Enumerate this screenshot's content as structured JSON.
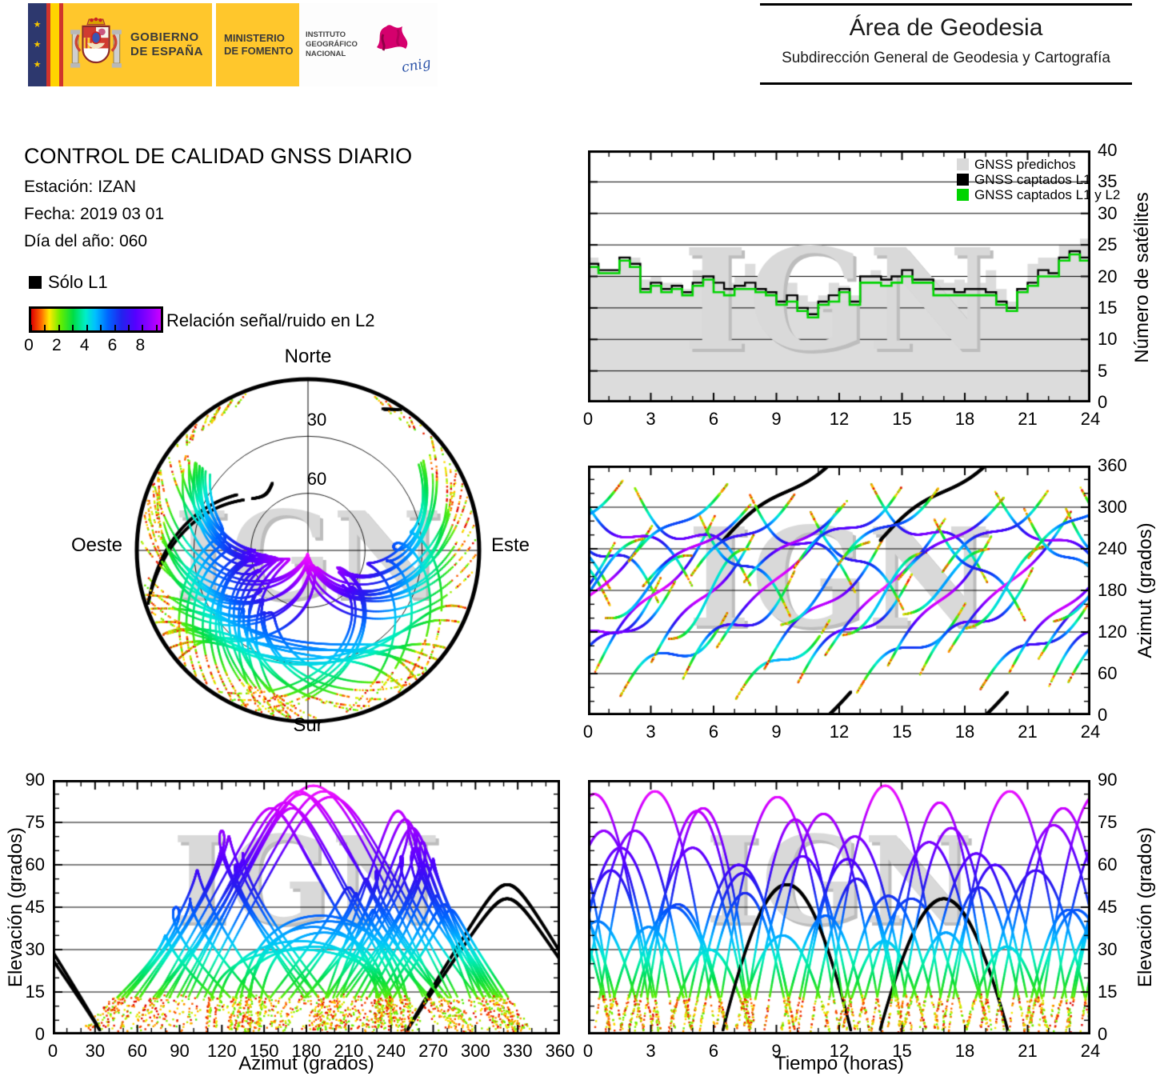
{
  "banner": {
    "gobierno": [
      "GOBIERNO",
      "DE ESPAÑA"
    ],
    "ministerio": [
      "MINISTERIO",
      "DE FOMENTO"
    ],
    "instituto": [
      "INSTITUTO",
      "GEOGRÁFICO",
      "NACIONAL"
    ],
    "cnig": "cnig"
  },
  "header": {
    "title": "Área de Geodesia",
    "subtitle": "Subdirección General de Geodesia y Cartografía"
  },
  "report": {
    "title": "CONTROL DE CALIDAD GNSS DIARIO",
    "station": "Estación: IZAN",
    "date": "Fecha: 2019 03 01",
    "doy": "Día del año: 060"
  },
  "l1_legend": {
    "label": "Sólo L1",
    "color": "#000000"
  },
  "snr_scale": {
    "label": "Relación señal/ruido en L2",
    "min": 0,
    "max": 9.3,
    "tick_labels": [
      0,
      2,
      4,
      6,
      8
    ],
    "minor_ticks": [
      0,
      1,
      2,
      3,
      4,
      5,
      6,
      7,
      8,
      9
    ],
    "stops": [
      [
        0,
        "#dd0000"
      ],
      [
        0.7,
        "#ff6600"
      ],
      [
        1.3,
        "#ffe900"
      ],
      [
        2.1,
        "#66ee00"
      ],
      [
        3.0,
        "#00dd44"
      ],
      [
        3.9,
        "#00eec8"
      ],
      [
        4.6,
        "#00bfff"
      ],
      [
        5.5,
        "#0066ff"
      ],
      [
        6.5,
        "#2222ee"
      ],
      [
        7.5,
        "#5500ff"
      ],
      [
        8.6,
        "#9900ff"
      ],
      [
        9.3,
        "#cc00ff"
      ],
      [
        10.2,
        "#ff22ff"
      ]
    ]
  },
  "watermark": "IGN",
  "chart_data": [
    {
      "id": "sat_count",
      "type": "area",
      "legend": [
        {
          "label": "GNSS predichos",
          "color": "#d9d9d9"
        },
        {
          "label": "GNSS captados L1",
          "color": "#000000"
        },
        {
          "label": "GNSS captados L1 y L2",
          "color": "#00d400"
        }
      ],
      "ylabel": "Número de satélites",
      "xlim": [
        0,
        24
      ],
      "ylim": [
        0,
        40
      ],
      "xticks": [
        0,
        3,
        6,
        9,
        12,
        15,
        18,
        21,
        24
      ],
      "yticks": [
        0,
        5,
        10,
        15,
        20,
        25,
        30,
        35,
        40
      ],
      "grid": "horizontal",
      "x_step_hours": 0.5,
      "series": [
        {
          "name": "GNSS predichos",
          "color": "#dcdcdc",
          "fill": true,
          "values": [
            23,
            21,
            21,
            23,
            23,
            19.5,
            20,
            19,
            19,
            18,
            21,
            21,
            20,
            19,
            20,
            22,
            20,
            20,
            21,
            19,
            17,
            16,
            17,
            19,
            18.5,
            17,
            20,
            21,
            20,
            20.5,
            22.5,
            21,
            20,
            19.5,
            19,
            19.5,
            19,
            19,
            21,
            18,
            16,
            18,
            22,
            23,
            23,
            25,
            25,
            26,
            23.5
          ]
        },
        {
          "name": "GNSS captados L1",
          "color": "#000000",
          "fill": false,
          "values": [
            22,
            21,
            21,
            23,
            22,
            18,
            19,
            18,
            18.5,
            17.5,
            19,
            20,
            19,
            18,
            18.5,
            19,
            18,
            17.5,
            16,
            17,
            15,
            14,
            16,
            17,
            18,
            16,
            20,
            20,
            19.5,
            20,
            21,
            19.5,
            19.5,
            18,
            18,
            17.5,
            18,
            18,
            17.5,
            16,
            15,
            18,
            19,
            21,
            20.5,
            23,
            24,
            23,
            22
          ]
        },
        {
          "name": "GNSS captados L1 y L2",
          "color": "#00d400",
          "fill": false,
          "values": [
            21.5,
            20.5,
            20.5,
            22.5,
            21.5,
            17.5,
            18.5,
            17.5,
            18,
            17,
            18.5,
            19.5,
            17.5,
            17,
            18,
            18,
            17.5,
            17,
            15.5,
            16,
            14.5,
            13.5,
            15.5,
            16,
            17.5,
            15.5,
            19,
            19,
            18.5,
            19,
            20,
            19,
            19,
            17,
            17,
            17,
            17,
            17,
            17,
            15.5,
            14.5,
            17.5,
            18.5,
            20,
            20,
            22.5,
            23.5,
            22.5,
            22
          ]
        }
      ]
    },
    {
      "id": "skyplot",
      "type": "scatter",
      "subtype": "polar_sky",
      "compass": {
        "north": "Norte",
        "south": "Sur",
        "east": "Este",
        "west": "Oeste"
      },
      "ring_labels": [
        "30",
        "60"
      ],
      "rings": [
        30,
        60
      ],
      "elevation_range": [
        0,
        90
      ],
      "source": "satellite_passes"
    },
    {
      "id": "az_time",
      "type": "scatter",
      "ylabel": "Azimut (grados)",
      "xlim": [
        0,
        24
      ],
      "ylim": [
        0,
        360
      ],
      "xticks": [
        0,
        3,
        6,
        9,
        12,
        15,
        18,
        21,
        24
      ],
      "yticks": [
        0,
        60,
        120,
        180,
        240,
        300,
        360
      ],
      "grid": "horizontal",
      "source": "satellite_passes"
    },
    {
      "id": "el_az",
      "type": "scatter",
      "xlabel": "Azimut (grados)",
      "ylabel": "Elevación (grados)",
      "xlim": [
        0,
        360
      ],
      "ylim": [
        0,
        90
      ],
      "xticks": [
        0,
        30,
        60,
        90,
        120,
        150,
        180,
        210,
        240,
        270,
        300,
        330,
        360
      ],
      "yticks": [
        0,
        15,
        30,
        45,
        60,
        75,
        90
      ],
      "grid": "horizontal",
      "source": "satellite_passes"
    },
    {
      "id": "el_time",
      "type": "scatter",
      "xlabel": "Tiempo (horas)",
      "ylabel": "Elevación (grados)",
      "xlim": [
        0,
        24
      ],
      "ylim": [
        0,
        90
      ],
      "xticks": [
        0,
        3,
        6,
        9,
        12,
        15,
        18,
        21,
        24
      ],
      "yticks": [
        0,
        15,
        30,
        45,
        60,
        75,
        90
      ],
      "grid": "horizontal",
      "source": "satellite_passes"
    }
  ],
  "satellite_passes": {
    "format": [
      "t0_h",
      "dur_h",
      "az_rise_deg",
      "az_set_deg",
      "el_max_deg",
      "az_bulge_deg",
      "l1_only"
    ],
    "passes": [
      [
        -2.0,
        5.5,
        40,
        200,
        72,
        30,
        0
      ],
      [
        -1.2,
        4.6,
        300,
        160,
        58,
        -25,
        0
      ],
      [
        0.3,
        5.8,
        60,
        290,
        86,
        20,
        0
      ],
      [
        0.8,
        4.2,
        140,
        230,
        38,
        -15,
        0
      ],
      [
        1.5,
        5.2,
        25,
        150,
        45,
        25,
        0
      ],
      [
        2.2,
        5.6,
        330,
        185,
        66,
        -30,
        0
      ],
      [
        3.0,
        5.0,
        75,
        265,
        80,
        15,
        0
      ],
      [
        3.8,
        4.0,
        110,
        240,
        30,
        -20,
        0
      ],
      [
        4.5,
        5.4,
        50,
        210,
        60,
        28,
        0
      ],
      [
        5.3,
        4.4,
        290,
        140,
        50,
        -22,
        0
      ],
      [
        6.1,
        5.9,
        95,
        300,
        84,
        12,
        0
      ],
      [
        6.4,
        6.2,
        250,
        395,
        53,
        10,
        1
      ],
      [
        7.0,
        4.6,
        20,
        140,
        35,
        18,
        0
      ],
      [
        7.7,
        5.1,
        320,
        175,
        63,
        -26,
        0
      ],
      [
        8.4,
        5.7,
        65,
        255,
        78,
        20,
        0
      ],
      [
        9.2,
        4.3,
        130,
        250,
        42,
        -14,
        0
      ],
      [
        10.0,
        5.5,
        45,
        205,
        70,
        24,
        0
      ],
      [
        10.6,
        4.5,
        295,
        150,
        55,
        -20,
        0
      ],
      [
        11.3,
        5.8,
        85,
        285,
        88,
        10,
        0
      ],
      [
        12.1,
        4.1,
        115,
        235,
        33,
        -16,
        0
      ],
      [
        12.8,
        5.3,
        30,
        165,
        48,
        22,
        0
      ],
      [
        13.5,
        5.6,
        335,
        190,
        68,
        -28,
        0
      ],
      [
        13.9,
        6.2,
        250,
        395,
        48,
        10,
        1
      ],
      [
        14.3,
        5.0,
        70,
        260,
        82,
        14,
        0
      ],
      [
        15.0,
        4.2,
        145,
        240,
        36,
        -12,
        0
      ],
      [
        15.8,
        5.5,
        55,
        215,
        64,
        26,
        0
      ],
      [
        16.5,
        4.4,
        285,
        135,
        52,
        -18,
        0
      ],
      [
        17.2,
        5.9,
        90,
        295,
        86,
        12,
        0
      ],
      [
        18.0,
        4.0,
        125,
        245,
        31,
        -15,
        0
      ],
      [
        18.7,
        5.4,
        35,
        170,
        58,
        20,
        0
      ],
      [
        19.4,
        5.7,
        325,
        180,
        74,
        -24,
        0
      ],
      [
        20.1,
        5.2,
        60,
        250,
        80,
        16,
        0
      ],
      [
        20.8,
        4.3,
        300,
        155,
        44,
        -20,
        0
      ],
      [
        21.5,
        5.6,
        80,
        275,
        85,
        12,
        0
      ],
      [
        22.2,
        4.5,
        135,
        255,
        40,
        -14,
        0
      ],
      [
        22.9,
        5.3,
        45,
        195,
        66,
        22,
        0
      ],
      [
        23.5,
        5.5,
        330,
        185,
        72,
        -26,
        0
      ],
      [
        9.8,
        5.2,
        210,
        330,
        62,
        18,
        0
      ],
      [
        4.9,
        5.0,
        200,
        320,
        57,
        15,
        0
      ],
      [
        16.9,
        5.1,
        205,
        325,
        60,
        16,
        0
      ],
      [
        1.9,
        4.8,
        220,
        335,
        46,
        12,
        0
      ],
      [
        11.9,
        4.9,
        215,
        330,
        49,
        14,
        0
      ],
      [
        21.0,
        4.7,
        225,
        340,
        44,
        12,
        0
      ],
      [
        7.4,
        5.0,
        190,
        310,
        76,
        10,
        0
      ],
      [
        14.8,
        5.1,
        195,
        315,
        73,
        10,
        0
      ],
      [
        2.6,
        5.2,
        185,
        305,
        79,
        10,
        0
      ]
    ]
  }
}
